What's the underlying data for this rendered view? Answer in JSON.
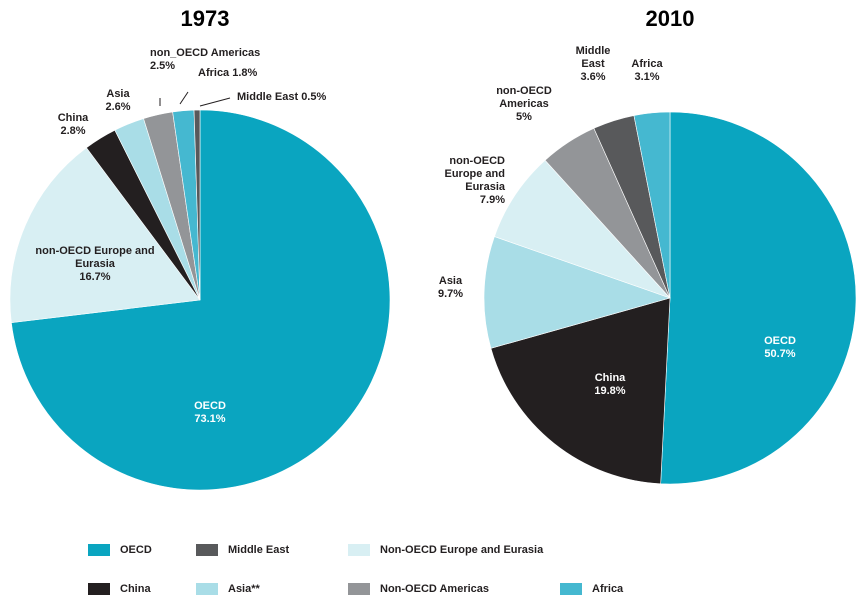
{
  "chart_data": [
    {
      "type": "pie",
      "title": "1973",
      "categories": [
        "OECD",
        "non-OECD Europe and Eurasia",
        "China",
        "Asia",
        "non_OECD Americas",
        "Africa",
        "Middle East"
      ],
      "values": [
        73.1,
        16.7,
        2.8,
        2.6,
        2.5,
        1.8,
        0.5
      ],
      "value_labels": [
        "73.1%",
        "16.7%",
        "2.8%",
        "2.6%",
        "2.5%",
        "1.8%",
        "0.5%"
      ],
      "colors": [
        "#0aa5c0",
        "#d8eff3",
        "#231f20",
        "#a9dde7",
        "#939598",
        "#45b8d0",
        "#58595b"
      ]
    },
    {
      "type": "pie",
      "title": "2010",
      "categories": [
        "OECD",
        "China",
        "Asia",
        "non-OECD Europe and Eurasia",
        "non-OECD Americas",
        "Middle East",
        "Africa"
      ],
      "values": [
        50.7,
        19.8,
        9.7,
        7.9,
        5,
        3.6,
        3.1
      ],
      "value_labels": [
        "50.7%",
        "19.8%",
        "9.7%",
        "7.9%",
        "5%",
        "3.6%",
        "3.1%"
      ],
      "colors": [
        "#0aa5c0",
        "#231f20",
        "#a9dde7",
        "#d8eff3",
        "#939598",
        "#58595b",
        "#45b8d0"
      ]
    }
  ],
  "legend": {
    "items": [
      {
        "name": "OECD",
        "color": "#0aa5c0"
      },
      {
        "name": "Middle East",
        "color": "#58595b"
      },
      {
        "name": "Non-OECD Europe and Eurasia",
        "color": "#d8eff3"
      },
      {
        "name": "China",
        "color": "#231f20"
      },
      {
        "name": "Asia**",
        "color": "#a9dde7"
      },
      {
        "name": "Non-OECD Americas",
        "color": "#939598"
      },
      {
        "name": "Africa",
        "color": "#45b8d0"
      }
    ]
  }
}
